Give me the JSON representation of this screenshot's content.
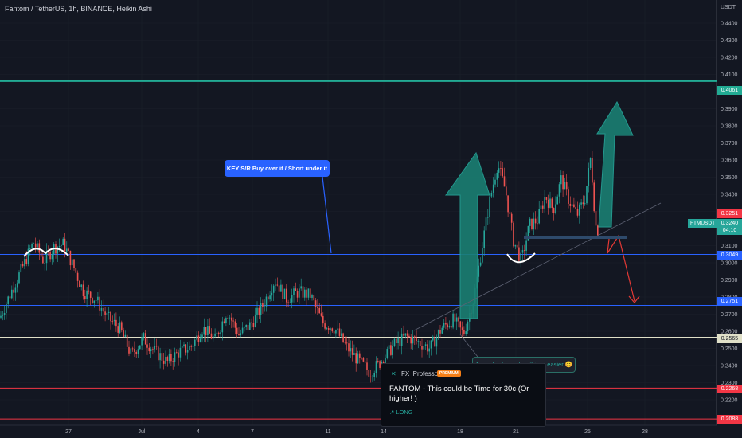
{
  "header": {
    "title": "Fantom / TetherUS, 1h, BINANCE, Heikin Ashi"
  },
  "colors": {
    "background": "#131722",
    "up": "#26a69a",
    "down": "#ef5350",
    "support": "#2962ff",
    "accent_green": "#22ab94",
    "red_line": "#f23645"
  },
  "annotations": {
    "key_sr": "KEY S/R Buy over it / Short under it",
    "entry": "A good entry makes things easier 😊"
  },
  "idea_card": {
    "author": "FX_Professor",
    "badge": "PREMIUM",
    "title": "FANTOM - This could be Time for 30c (Or higher! )",
    "direction": "↗ LONG"
  },
  "price_tags": {
    "pair": "FTMUSDT",
    "current": "0.3240",
    "countdown": "04:10",
    "resistance": "0.4061",
    "high": "0.3251",
    "key_sr": "0.3049",
    "support2": "0.2751",
    "support3": "0.2565",
    "red1": "0.2268",
    "red2": "0.2088"
  },
  "chart_data": {
    "type": "candlestick",
    "title": "Fantom / TetherUS, 1h, BINANCE, Heikin Ashi",
    "y_unit": "USDT",
    "ylim": [
      0.205,
      0.455
    ],
    "y_ticks": [
      "0.4400",
      "0.4300",
      "0.4200",
      "0.4100",
      "0.3900",
      "0.3800",
      "0.3700",
      "0.3600",
      "0.3500",
      "0.3400",
      "0.3300",
      "0.3100",
      "0.3000",
      "0.2900",
      "0.2800",
      "0.2700",
      "0.2600",
      "0.2500",
      "0.2400",
      "0.2300",
      "0.2200"
    ],
    "x_ticks": [
      "27",
      "Jul",
      "4",
      "7",
      "11",
      "14",
      "18",
      "21",
      "25",
      "28"
    ],
    "horizontal_levels": [
      {
        "price": 0.4061,
        "color": "#22ab94"
      },
      {
        "price": 0.3049,
        "color": "#2962ff"
      },
      {
        "price": 0.2751,
        "color": "#2962ff"
      },
      {
        "price": 0.2565,
        "color": "#e0e0c8"
      },
      {
        "price": 0.2268,
        "color": "#f23645"
      },
      {
        "price": 0.2088,
        "color": "#f23645"
      }
    ],
    "price_path": [
      {
        "x": 0,
        "y": 0.268
      },
      {
        "x": 12,
        "y": 0.281
      },
      {
        "x": 28,
        "y": 0.297
      },
      {
        "x": 42,
        "y": 0.312
      },
      {
        "x": 55,
        "y": 0.301
      },
      {
        "x": 68,
        "y": 0.309
      },
      {
        "x": 80,
        "y": 0.311
      },
      {
        "x": 92,
        "y": 0.298
      },
      {
        "x": 105,
        "y": 0.283
      },
      {
        "x": 120,
        "y": 0.279
      },
      {
        "x": 135,
        "y": 0.268
      },
      {
        "x": 150,
        "y": 0.262
      },
      {
        "x": 165,
        "y": 0.246
      },
      {
        "x": 180,
        "y": 0.256
      },
      {
        "x": 195,
        "y": 0.248
      },
      {
        "x": 210,
        "y": 0.242
      },
      {
        "x": 225,
        "y": 0.248
      },
      {
        "x": 240,
        "y": 0.251
      },
      {
        "x": 255,
        "y": 0.262
      },
      {
        "x": 270,
        "y": 0.255
      },
      {
        "x": 285,
        "y": 0.272
      },
      {
        "x": 300,
        "y": 0.258
      },
      {
        "x": 315,
        "y": 0.264
      },
      {
        "x": 330,
        "y": 0.275
      },
      {
        "x": 345,
        "y": 0.29
      },
      {
        "x": 360,
        "y": 0.279
      },
      {
        "x": 375,
        "y": 0.283
      },
      {
        "x": 390,
        "y": 0.281
      },
      {
        "x": 405,
        "y": 0.265
      },
      {
        "x": 420,
        "y": 0.262
      },
      {
        "x": 435,
        "y": 0.251
      },
      {
        "x": 450,
        "y": 0.243
      },
      {
        "x": 465,
        "y": 0.236
      },
      {
        "x": 480,
        "y": 0.243
      },
      {
        "x": 495,
        "y": 0.252
      },
      {
        "x": 510,
        "y": 0.257
      },
      {
        "x": 525,
        "y": 0.254
      },
      {
        "x": 540,
        "y": 0.25
      },
      {
        "x": 555,
        "y": 0.262
      },
      {
        "x": 570,
        "y": 0.267
      },
      {
        "x": 582,
        "y": 0.258
      },
      {
        "x": 595,
        "y": 0.279
      },
      {
        "x": 605,
        "y": 0.308
      },
      {
        "x": 615,
        "y": 0.336
      },
      {
        "x": 625,
        "y": 0.358
      },
      {
        "x": 635,
        "y": 0.342
      },
      {
        "x": 645,
        "y": 0.313
      },
      {
        "x": 655,
        "y": 0.301
      },
      {
        "x": 665,
        "y": 0.322
      },
      {
        "x": 675,
        "y": 0.325
      },
      {
        "x": 685,
        "y": 0.339
      },
      {
        "x": 695,
        "y": 0.331
      },
      {
        "x": 705,
        "y": 0.349
      },
      {
        "x": 715,
        "y": 0.336
      },
      {
        "x": 725,
        "y": 0.328
      },
      {
        "x": 735,
        "y": 0.338
      },
      {
        "x": 742,
        "y": 0.362
      },
      {
        "x": 748,
        "y": 0.322
      },
      {
        "x": 752,
        "y": 0.318
      }
    ]
  }
}
